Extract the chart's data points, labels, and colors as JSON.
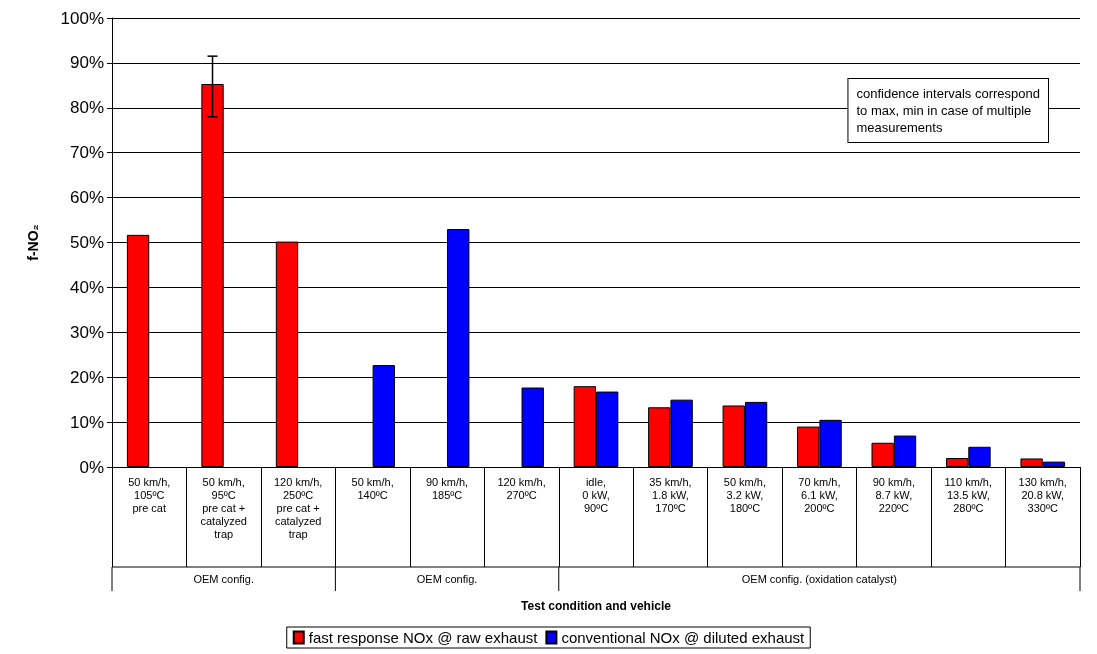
{
  "chart_data": {
    "type": "bar",
    "ylabel": "f-NO₂",
    "xlabel": "Test condition and vehicle",
    "categories": [
      "50 km/h,\n105ºC\npre cat",
      "50 km/h,\n95ºC\npre cat +\ncatalyzed\ntrap",
      "120 km/h,\n250ºC\npre cat +\ncatalyzed\ntrap",
      "50 km/h,\n140ºC",
      "90 km/h,\n185ºC",
      "120 km/h,\n270ºC",
      "idle,\n0 kW,\n90ºC",
      "35 km/h,\n1.8 kW,\n170ºC",
      "50 km/h,\n3.2 kW,\n180ºC",
      "70 km/h,\n6.1 kW,\n200ºC",
      "90 km/h,\n8.7 kW,\n220ºC",
      "110 km/h,\n13.5 kW,\n280ºC",
      "130 km/h,\n20.8 kW,\n330ºC"
    ],
    "series": [
      {
        "name": "fast response NOx @ raw exhaust",
        "color": "#ff0000",
        "values": [
          51.7,
          85.3,
          50.2,
          null,
          null,
          null,
          18,
          13.3,
          13.7,
          9,
          5.4,
          2,
          1.9
        ],
        "errors": [
          null,
          [
            78,
            91.5
          ],
          null,
          null,
          null,
          null,
          null,
          null,
          null,
          null,
          null,
          null,
          null
        ]
      },
      {
        "name": "conventional NOx @ diluted exhaust",
        "color": "#0000ff",
        "values": [
          null,
          null,
          null,
          22.7,
          53,
          17.7,
          16.8,
          15,
          14.5,
          10.5,
          7,
          4.5,
          1.2
        ]
      }
    ],
    "ylim": [
      0,
      100
    ],
    "yticks": [
      {
        "value": 0,
        "label": "0%"
      },
      {
        "value": 10,
        "label": "10%"
      },
      {
        "value": 20,
        "label": "20%"
      },
      {
        "value": 30,
        "label": "30%"
      },
      {
        "value": 40,
        "label": "40%"
      },
      {
        "value": 50,
        "label": "50%"
      },
      {
        "value": 60,
        "label": "60%"
      },
      {
        "value": 70,
        "label": "70%"
      },
      {
        "value": 80,
        "label": "80%"
      },
      {
        "value": 90,
        "label": "90%"
      },
      {
        "value": 100,
        "label": "100%"
      }
    ],
    "grid": "y",
    "legend": "bottom",
    "annotations": [
      "confidence intervals correspond\nto max, min in case of multiple\nmeasurements",
      "OEM config.",
      "OEM config.",
      "OEM config. (oxidation catalyst)"
    ]
  }
}
